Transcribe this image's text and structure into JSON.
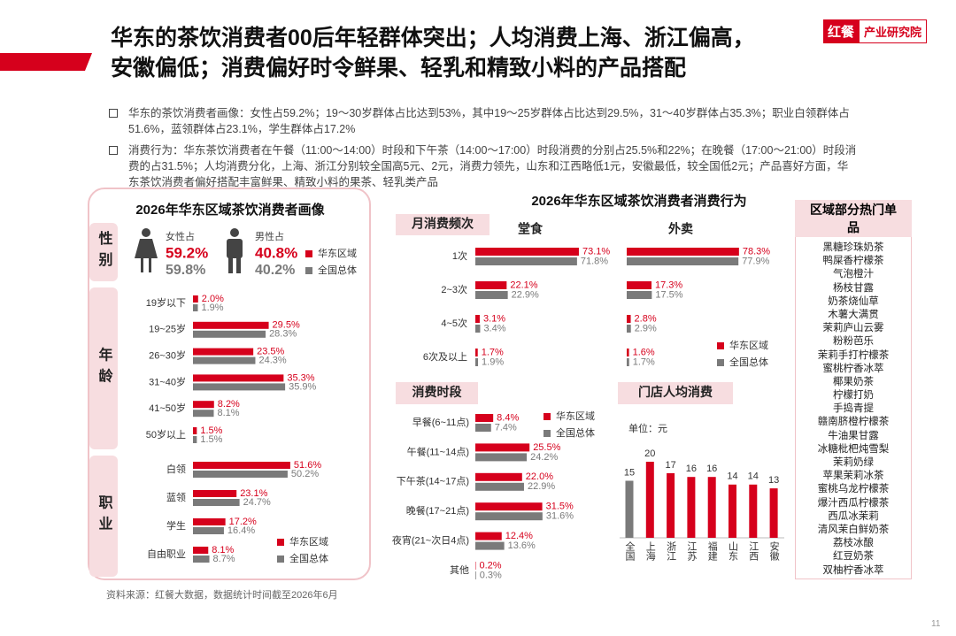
{
  "header": {
    "title": [
      "华东的茶饮消费者00后年轻群体突出；人均消费上海、浙江偏高，",
      "安徽偏低；消费偏好时令鲜果、轻乳和精致小料的产品搭配"
    ],
    "logo_brand": "红餐",
    "logo_text": "产业研究院"
  },
  "bullets": [
    "华东的茶饮消费者画像：女性占59.2%；19～30岁群体占比达到53%，其中19～25岁群体占比达到29.5%，31～40岁群体占35.3%；职业白领群体占51.6%，蓝领群体占23.1%，学生群体占17.2%",
    "消费行为：华东茶饮消费者在午餐（11:00～14:00）时段和下午茶（14:00～17:00）时段消费的分别占25.5%和22%；在晚餐（17:00～21:00）时段消费的占31.5%；人均消费分化，上海、浙江分别较全国高5元、2元，消费力领先，山东和江西略低1元，安徽最低，较全国低2元；产品喜好方面，华东茶饮消费者偏好搭配丰富鲜果、精致小料的果茶、轻乳类产品"
  ],
  "profile_title": "2026年华东区域茶饮消费者画像",
  "behavior_title": "2026年华东区域茶饮消费者消费行为",
  "chart_data": [
    {
      "type": "stat",
      "title": "性别",
      "categories": [
        "女性占",
        "男性占"
      ],
      "legend": "right",
      "series": [
        {
          "name": "华东区域",
          "color": "#d6001c",
          "values": [
            59.2,
            40.8
          ],
          "value_labels": [
            "59.2%",
            "40.8%"
          ]
        },
        {
          "name": "全国总体",
          "color": "#7a7a7a",
          "values": [
            59.8,
            40.2
          ],
          "value_labels": [
            "59.8%",
            "40.2%"
          ]
        }
      ]
    },
    {
      "type": "hbar",
      "title": "年龄",
      "categories": [
        "19岁以下",
        "19~25岁",
        "26~30岁",
        "31~40岁",
        "41~50岁",
        "50岁以上"
      ],
      "series": [
        {
          "color": "#d6001c",
          "values": [
            2.0,
            29.5,
            23.5,
            35.3,
            8.2,
            1.5
          ],
          "value_labels": [
            "2.0%",
            "29.5%",
            "23.5%",
            "35.3%",
            "8.2%",
            "1.5%"
          ]
        },
        {
          "color": "#7a7a7a",
          "values": [
            1.9,
            28.3,
            24.3,
            35.9,
            8.1,
            1.5
          ],
          "value_labels": [
            "1.9%",
            "28.3%",
            "24.3%",
            "35.9%",
            "8.1%",
            "1.5%"
          ]
        }
      ]
    },
    {
      "type": "hbar",
      "title": "职业",
      "categories": [
        "白领",
        "蓝领",
        "学生",
        "自由职业"
      ],
      "legend": "bottom-right",
      "series": [
        {
          "name": "华东区域",
          "color": "#d6001c",
          "values": [
            51.6,
            23.1,
            17.2,
            8.1
          ],
          "value_labels": [
            "51.6%",
            "23.1%",
            "17.2%",
            "8.1%"
          ]
        },
        {
          "name": "全国总体",
          "color": "#7a7a7a",
          "values": [
            50.2,
            24.7,
            16.4,
            8.7
          ],
          "value_labels": [
            "50.2%",
            "24.7%",
            "16.4%",
            "8.7%"
          ]
        }
      ]
    },
    {
      "type": "hbar",
      "title": "月消费频次",
      "subtitle": "堂食",
      "categories": [
        "1次",
        "2~3次",
        "4~5次",
        "6次及以上"
      ],
      "series": [
        {
          "color": "#d6001c",
          "values": [
            73.1,
            22.1,
            3.1,
            1.7
          ],
          "value_labels": [
            "73.1%",
            "22.1%",
            "3.1%",
            "1.7%"
          ]
        },
        {
          "color": "#7a7a7a",
          "values": [
            71.8,
            22.9,
            3.4,
            1.9
          ],
          "value_labels": [
            "71.8%",
            "22.9%",
            "3.4%",
            "1.9%"
          ]
        }
      ]
    },
    {
      "type": "hbar",
      "subtitle": "外卖",
      "legend": "bottom-right",
      "series": [
        {
          "name": "华东区域",
          "color": "#d6001c",
          "values": [
            78.3,
            17.3,
            2.8,
            1.6
          ],
          "value_labels": [
            "78.3%",
            "17.3%",
            "2.8%",
            "1.6%"
          ]
        },
        {
          "name": "全国总体",
          "color": "#7a7a7a",
          "values": [
            77.9,
            17.5,
            2.9,
            1.7
          ],
          "value_labels": [
            "77.9%",
            "17.5%",
            "2.9%",
            "1.7%"
          ]
        }
      ]
    },
    {
      "type": "hbar",
      "title": "消费时段",
      "categories": [
        "早餐(6~11点)",
        "午餐(11~14点)",
        "下午茶(14~17点)",
        "晚餐(17~21点)",
        "夜宵(21~次日4点)",
        "其他"
      ],
      "legend": "top-right",
      "series": [
        {
          "name": "华东区域",
          "color": "#d6001c",
          "values": [
            8.4,
            25.5,
            22.0,
            31.5,
            12.4,
            0.2
          ],
          "value_labels": [
            "8.4%",
            "25.5%",
            "22.0%",
            "31.5%",
            "12.4%",
            "0.2%"
          ]
        },
        {
          "name": "全国总体",
          "color": "#7a7a7a",
          "values": [
            7.4,
            24.2,
            22.9,
            31.6,
            13.6,
            0.3
          ],
          "value_labels": [
            "7.4%",
            "24.2%",
            "22.9%",
            "31.6%",
            "13.6%",
            "0.3%"
          ]
        }
      ]
    },
    {
      "type": "bar",
      "title": "门店人均消费",
      "unit": "单位：元",
      "categories": [
        "全国",
        "上海",
        "浙江",
        "江苏",
        "福建",
        "山东",
        "江西",
        "安徽"
      ],
      "values": [
        15,
        20,
        17,
        16,
        16,
        14,
        14,
        13
      ],
      "colors": [
        "#7a7a7a",
        "#d6001c",
        "#d6001c",
        "#d6001c",
        "#d6001c",
        "#d6001c",
        "#d6001c",
        "#d6001c"
      ]
    }
  ],
  "hot_items": {
    "title": "区域部分热门单品",
    "items": [
      "黑糖珍珠奶茶",
      "鸭屎香柠檬茶",
      "气泡橙汁",
      "杨枝甘露",
      "奶茶烧仙草",
      "木薯大满贯",
      "茉莉庐山云雾",
      "粉粉芭乐",
      "茉莉手打柠檬茶",
      "蜜桃柠香冰萃",
      "椰果奶茶",
      "柠檬打奶",
      "手捣青提",
      "赣南脐橙柠檬茶",
      "牛油果甘露",
      "冰糖枇杷炖雪梨",
      "茉莉奶绿",
      "苹果茉莉冰茶",
      "蜜桃乌龙柠檬茶",
      "爆汁西瓜柠檬茶",
      "西瓜冰茉莉",
      "清风茉白鲜奶茶",
      "荔枝冰酿",
      "红豆奶茶",
      "双柚柠香冰萃"
    ]
  },
  "source": "资料来源：红餐大数据，数据统计时间截至2026年6月",
  "page_number": "11"
}
